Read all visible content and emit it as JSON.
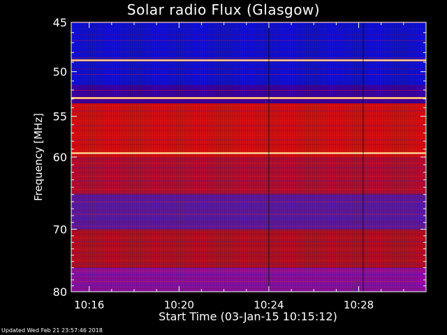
{
  "chart_data": {
    "type": "heatmap",
    "title": "Solar radio Flux (Glasgow)",
    "xlabel": "Start Time (03-Jan-15 10:15:12)",
    "ylabel": "Frequency [MHz]",
    "x_ticks": [
      "10:16",
      "10:20",
      "10:24",
      "10:28"
    ],
    "x_tick_minutes": [
      16,
      20,
      24,
      28
    ],
    "xlim_minutes": [
      15.2,
      31.0
    ],
    "y_ticks": [
      45,
      50,
      55,
      60,
      70,
      80
    ],
    "ylim": [
      45,
      80
    ],
    "y_scale": "log",
    "segment_boundaries_minutes": [
      24.0,
      28.2
    ],
    "bright_lines_mhz": [
      48.8,
      52.9,
      59.5
    ],
    "bands": [
      {
        "from": 45,
        "to": 51.5,
        "color": "#1010d0"
      },
      {
        "from": 51.5,
        "to": 53.5,
        "color": "#3a00a0"
      },
      {
        "from": 53.5,
        "to": 60,
        "color": "#d01010"
      },
      {
        "from": 60,
        "to": 65,
        "color": "#b00e30"
      },
      {
        "from": 65,
        "to": 70,
        "color": "#5a1aa0"
      },
      {
        "from": 70,
        "to": 76,
        "color": "#b01020"
      },
      {
        "from": 76,
        "to": 80,
        "color": "#8a10a0"
      }
    ]
  },
  "footer": {
    "updated": "Updated Wed Feb 21 23:57:46 2018"
  }
}
